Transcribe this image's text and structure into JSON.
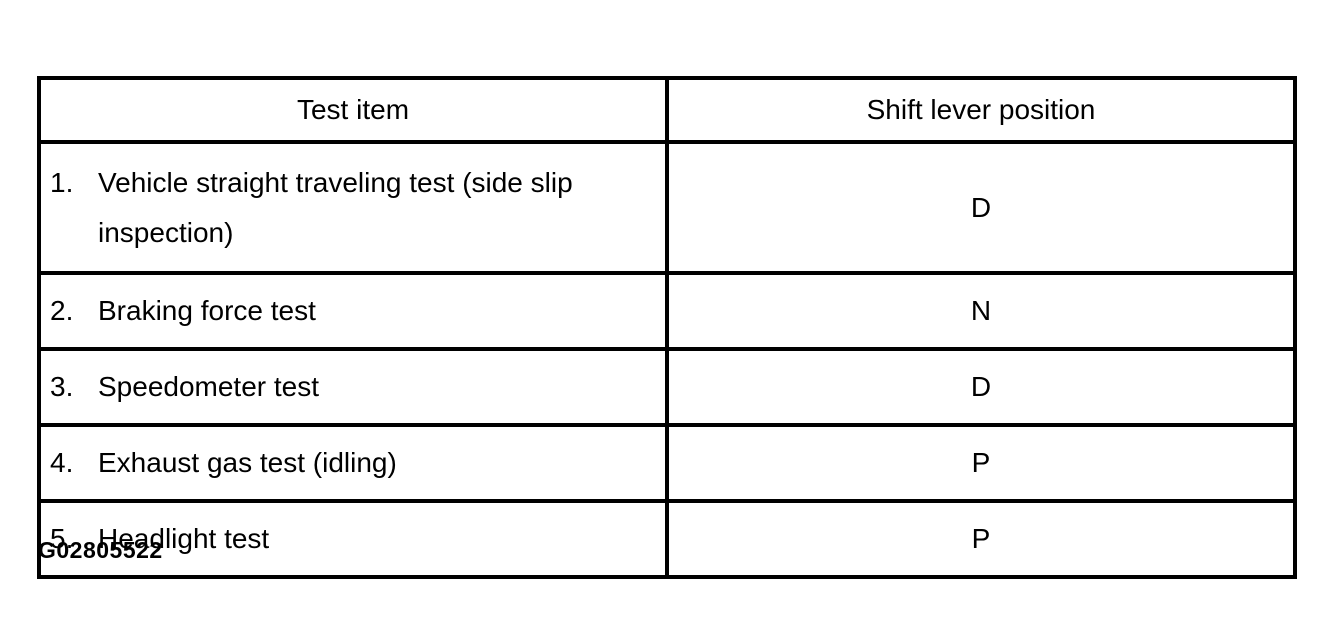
{
  "table": {
    "headers": {
      "test_item": "Test item",
      "shift_lever_position": "Shift lever position"
    },
    "rows": [
      {
        "num": "1.",
        "label": "Vehicle straight traveling test (side slip inspection)",
        "position": "D"
      },
      {
        "num": "2.",
        "label": "Braking force test",
        "position": "N"
      },
      {
        "num": "3.",
        "label": "Speedometer test",
        "position": "D"
      },
      {
        "num": "4.",
        "label": "Exhaust gas test (idling)",
        "position": "P"
      },
      {
        "num": "5.",
        "label": "Headlight test",
        "position": "P"
      }
    ]
  },
  "figure": {
    "caption": "G02805522"
  },
  "colors": {
    "border": "#000000",
    "background": "#ffffff",
    "text": "#000000"
  }
}
